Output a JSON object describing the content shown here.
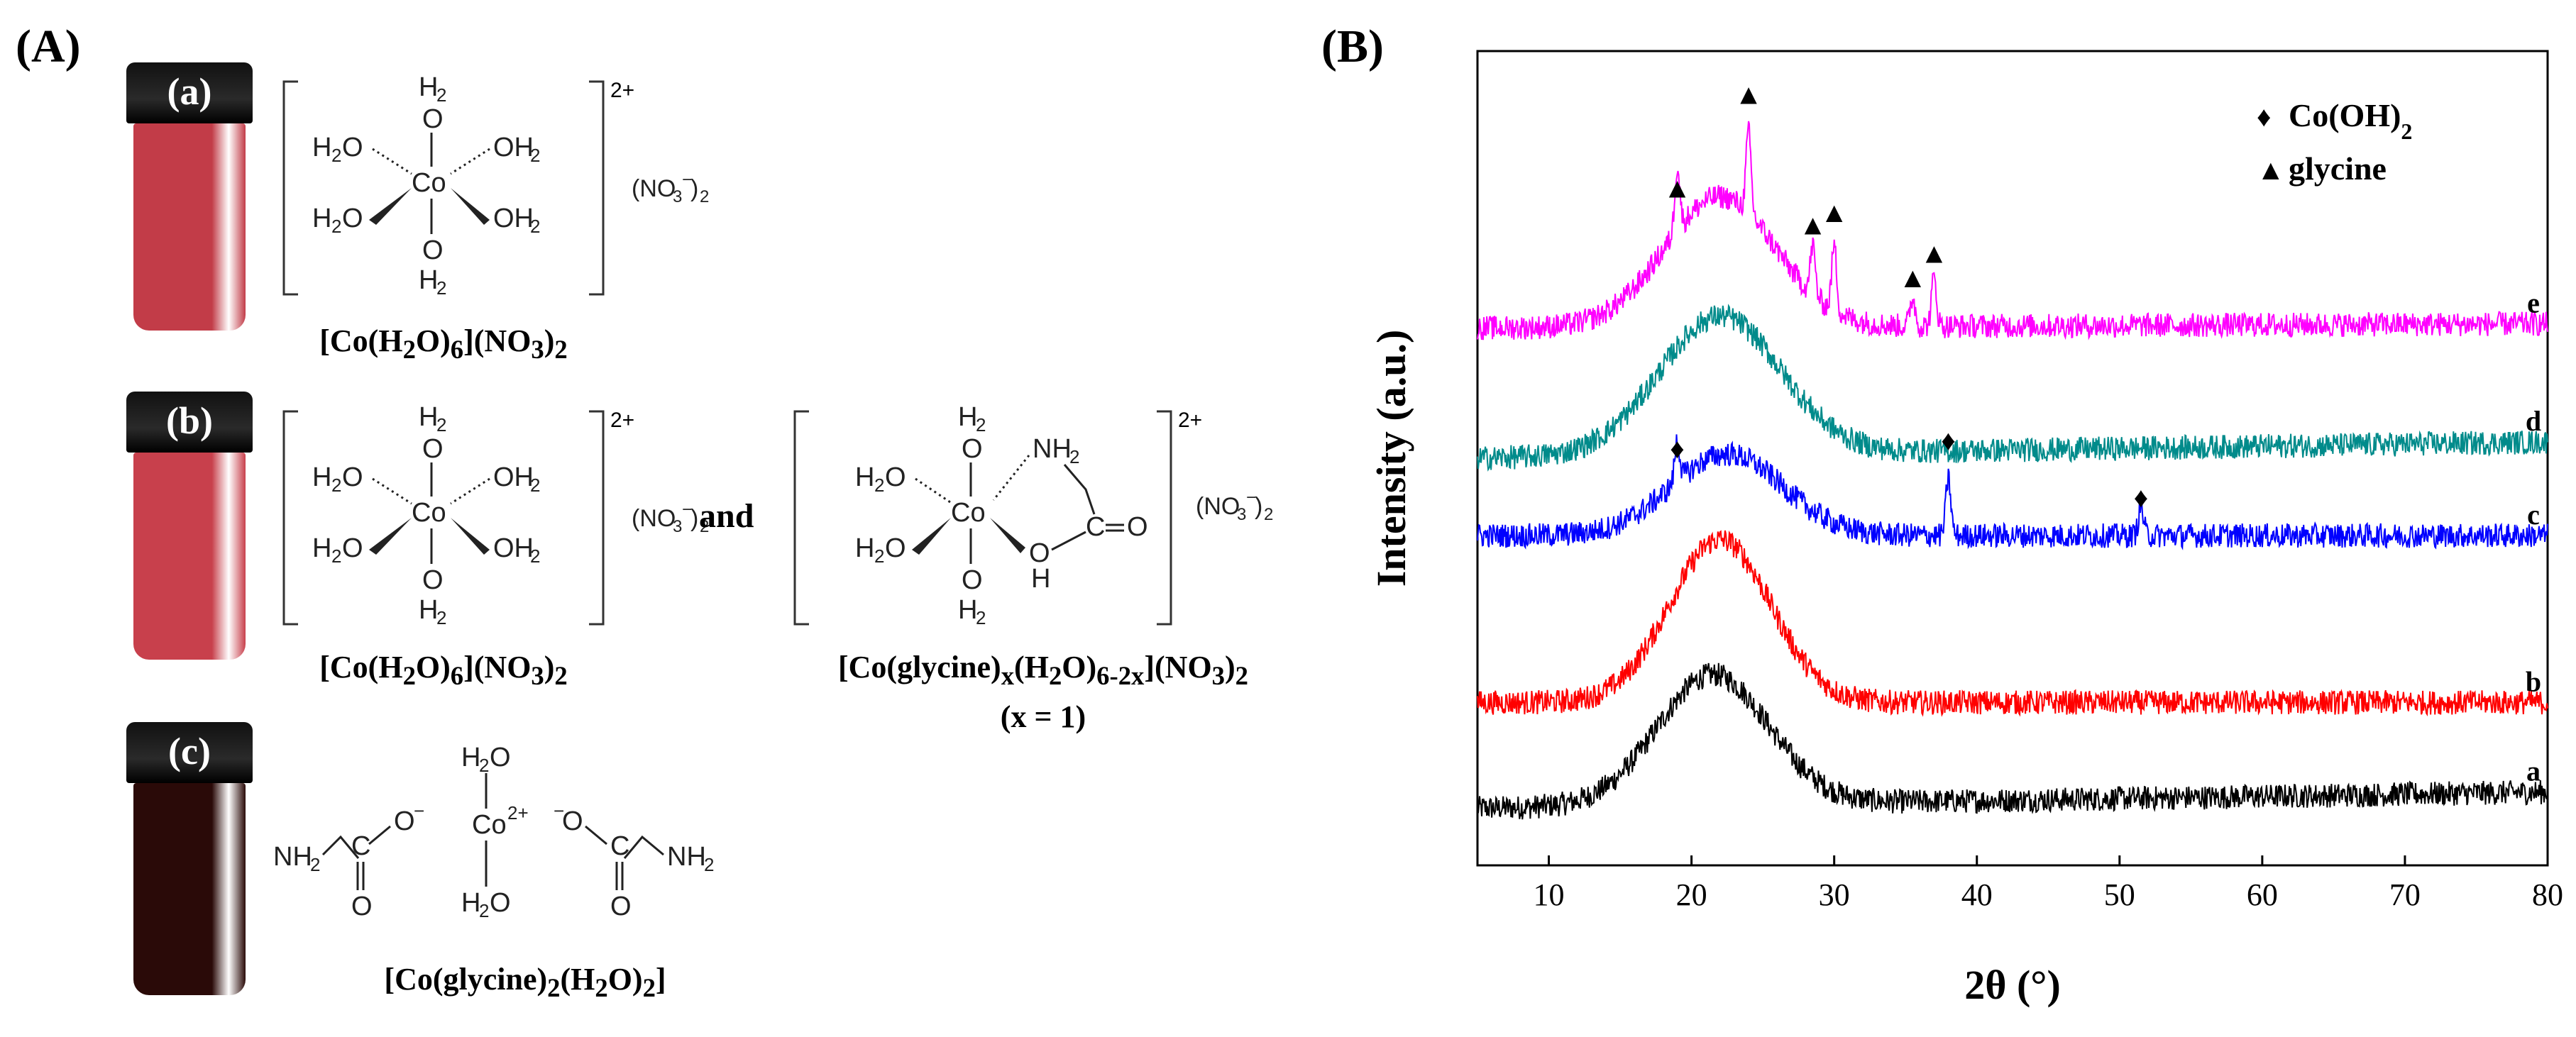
{
  "panelA": {
    "label": "(A)",
    "vials": [
      {
        "label": "(a)",
        "liquid_color": "#c23c48"
      },
      {
        "label": "(b)",
        "liquid_color": "#c8404c"
      },
      {
        "label": "(c)",
        "liquid_color": "#2a0a08"
      }
    ],
    "captions": {
      "a": {
        "prefix": "[Co(H",
        "s1": "2",
        "mid": "O)",
        "s2": "6",
        "mid2": "](NO",
        "s3": "3",
        "end": ")",
        "s4": "2"
      },
      "b1": {
        "prefix": "[Co(H",
        "s1": "2",
        "mid": "O)",
        "s2": "6",
        "mid2": "](NO",
        "s3": "3",
        "end": ")",
        "s4": "2"
      },
      "b2": {
        "prefix": "[Co(glycine)",
        "s1": "x",
        "mid": "(H",
        "s2": "2",
        "mid2": "O)",
        "s3": "6-2x",
        "mid3": "](NO",
        "s4": "3",
        "end": ")",
        "s5": "2"
      },
      "b2_note": "(x = 1)",
      "c": {
        "prefix": "[Co(glycine)",
        "s1": "2",
        "mid": "(H",
        "s2": "2",
        "mid2": "O)",
        "s3": "2",
        "end": "]"
      }
    },
    "and_text": "and",
    "structure_text": {
      "h2": "H",
      "h2sub": "2",
      "o": "O",
      "co": "Co",
      "charge": "2+",
      "h2o_left": "H",
      "oh2": "OH",
      "nh2": "NH",
      "no3_open": "(NO",
      "no3_sub": "3",
      "no3_sup": "−",
      "no3_close": ")",
      "no3_count": "2",
      "c": "C",
      "eq_o": "O",
      "h": "H",
      "co2plus_sup": "2+",
      "ominus": "O",
      "minus": "−"
    }
  },
  "panelB": {
    "label": "(B)"
  },
  "chart_data": {
    "type": "line",
    "title": "",
    "xlabel": "2θ (°)",
    "ylabel": "Intensity (a.u.)",
    "xlim": [
      5,
      80
    ],
    "xticks": [
      10,
      20,
      30,
      40,
      50,
      60,
      70,
      80
    ],
    "y_ticks_shown": false,
    "legend": {
      "position": "top-right",
      "entries": [
        {
          "marker": "diamond",
          "symbol": "♦",
          "label": "Co(OH)",
          "sub": "2"
        },
        {
          "marker": "triangle",
          "symbol": "▲",
          "label": "glycine"
        }
      ]
    },
    "series": [
      {
        "name": "a",
        "color": "#000000",
        "baseline": 0.07,
        "tail": 0.09,
        "hump": 0.16,
        "center": 21.5,
        "width": 5.5,
        "peaks": []
      },
      {
        "name": "b",
        "color": "#ff0000",
        "baseline": 0.2,
        "tail": 0.2,
        "hump": 0.2,
        "center": 22,
        "width": 5,
        "peaks": []
      },
      {
        "name": "c",
        "color": "#0000ff",
        "baseline": 0.405,
        "tail": 0.405,
        "hump": 0.1,
        "center": 22.5,
        "width": 5.5,
        "peaks": [
          {
            "x": 19,
            "h": 0.05
          },
          {
            "x": 38,
            "h": 0.07
          },
          {
            "x": 51.5,
            "h": 0.035
          }
        ]
      },
      {
        "name": "d",
        "color": "#008b8b",
        "baseline": 0.5,
        "tail": 0.52,
        "hump": 0.17,
        "center": 22,
        "width": 6,
        "peaks": []
      },
      {
        "name": "e",
        "color": "#ff00ff",
        "baseline": 0.66,
        "tail": 0.665,
        "hump": 0.16,
        "center": 22,
        "width": 5.5,
        "peaks": [
          {
            "x": 19,
            "h": 0.08
          },
          {
            "x": 24,
            "h": 0.1
          },
          {
            "x": 28.5,
            "h": 0.06
          },
          {
            "x": 30,
            "h": 0.08
          },
          {
            "x": 35.5,
            "h": 0.035
          },
          {
            "x": 37,
            "h": 0.06
          }
        ]
      }
    ],
    "markers": [
      {
        "type": "triangle",
        "symbol": "▲",
        "x": 19,
        "y": 0.82
      },
      {
        "type": "triangle",
        "symbol": "▲",
        "x": 24,
        "y": 0.935
      },
      {
        "type": "triangle",
        "symbol": "▲",
        "x": 28.5,
        "y": 0.775
      },
      {
        "type": "triangle",
        "symbol": "▲",
        "x": 30,
        "y": 0.79
      },
      {
        "type": "triangle",
        "symbol": "▲",
        "x": 35.5,
        "y": 0.71
      },
      {
        "type": "triangle",
        "symbol": "▲",
        "x": 37,
        "y": 0.74
      },
      {
        "type": "diamond",
        "symbol": "♦",
        "x": 19,
        "y": 0.5
      },
      {
        "type": "diamond",
        "symbol": "♦",
        "x": 38,
        "y": 0.51
      },
      {
        "type": "diamond",
        "symbol": "♦",
        "x": 51.5,
        "y": 0.44
      }
    ]
  }
}
